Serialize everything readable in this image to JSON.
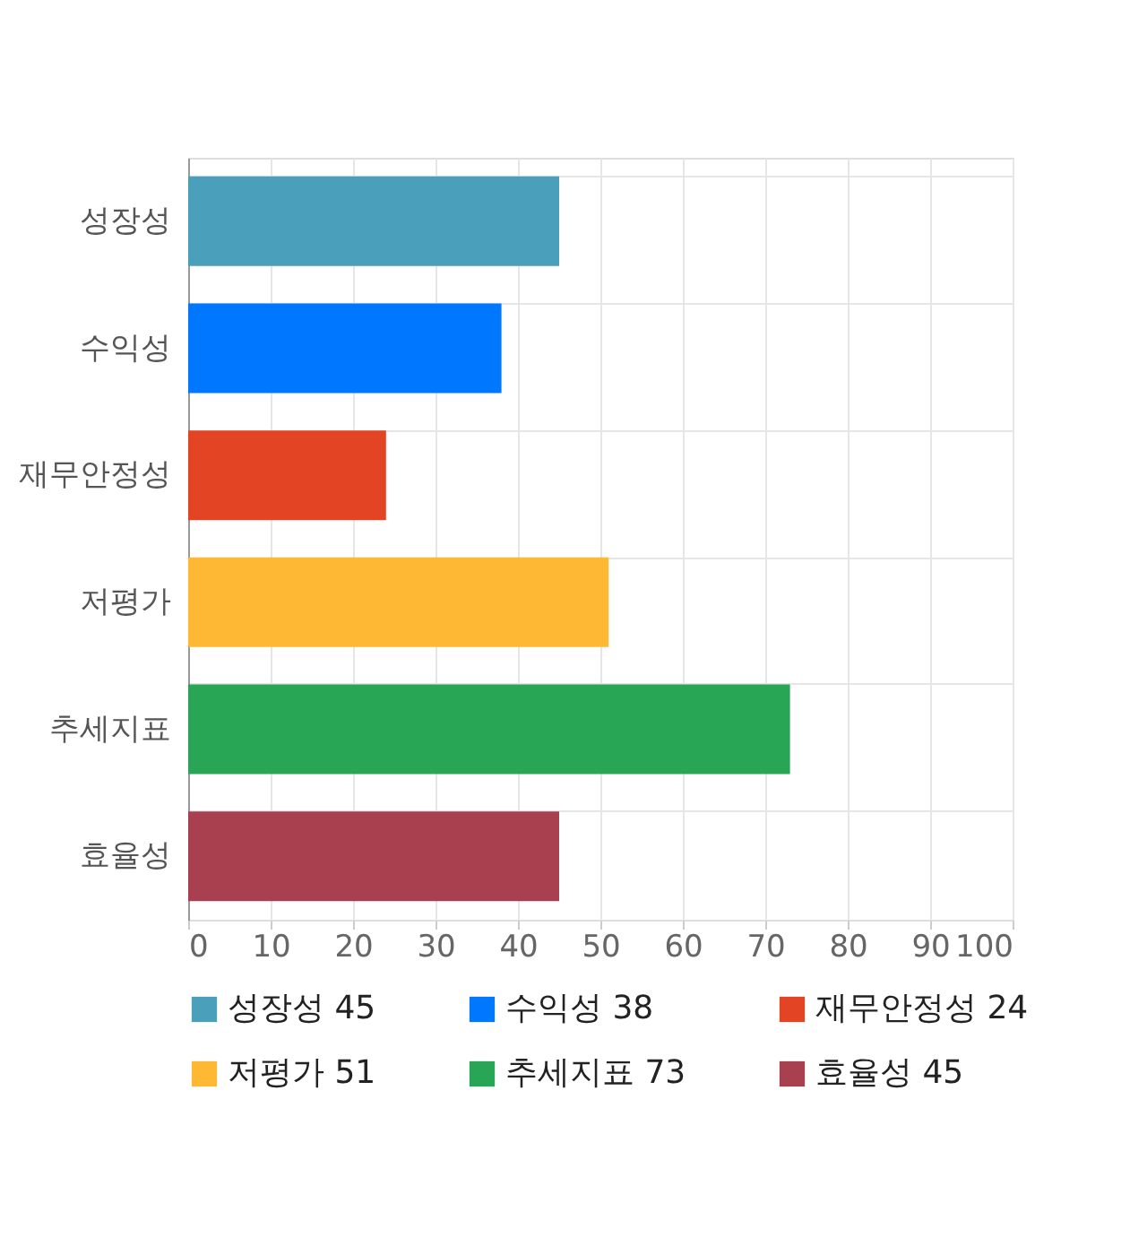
{
  "chart_data": {
    "type": "bar",
    "orientation": "horizontal",
    "categories": [
      "성장성",
      "수익성",
      "재무안정성",
      "저평가",
      "추세지표",
      "효율성"
    ],
    "series": [
      {
        "name": "성장성 45",
        "color": "#4aa0bb",
        "values": [
          45,
          null,
          null,
          null,
          null,
          null
        ]
      },
      {
        "name": "수익성 38",
        "color": "#0077ff",
        "values": [
          null,
          38,
          null,
          null,
          null,
          null
        ]
      },
      {
        "name": "재무안정성 24",
        "color": "#e34524",
        "values": [
          null,
          null,
          24,
          null,
          null,
          null
        ]
      },
      {
        "name": "저평가 51",
        "color": "#ffb833",
        "values": [
          null,
          null,
          null,
          51,
          null,
          null
        ]
      },
      {
        "name": "추세지표 73",
        "color": "#28a655",
        "values": [
          null,
          null,
          null,
          null,
          73,
          null
        ]
      },
      {
        "name": "효율성 45",
        "color": "#a8404f",
        "values": [
          null,
          null,
          null,
          null,
          null,
          45
        ]
      }
    ],
    "xlim": [
      0,
      100
    ],
    "xticks": [
      0,
      10,
      20,
      30,
      40,
      50,
      60,
      70,
      80,
      90,
      100
    ],
    "grid": true,
    "legend": "bottom"
  }
}
